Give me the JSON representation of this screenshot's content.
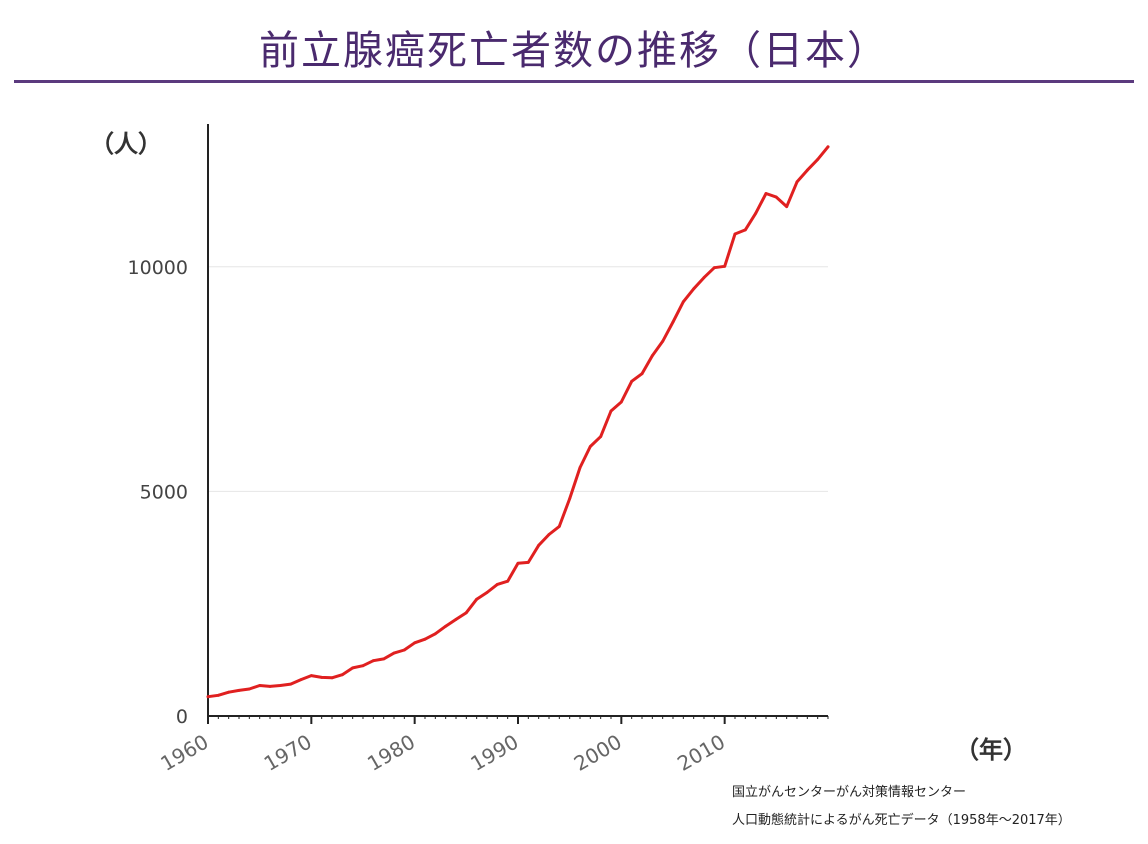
{
  "title": "前立腺癌死亡者数の推移（日本）",
  "source_lines": [
    "国立がんセンターがん対策情報センター",
    "人口動態統計によるがん死亡データ（1958年〜2017年）"
  ],
  "chart_data": {
    "type": "line",
    "title": "前立腺癌死亡者数の推移（日本）",
    "xlabel": "（年）",
    "ylabel": "（人）",
    "xlim": [
      1960,
      2020
    ],
    "ylim": [
      0,
      13000
    ],
    "x_ticks": [
      1960,
      1970,
      1980,
      1990,
      2000,
      2010
    ],
    "y_ticks": [
      0,
      5000,
      10000
    ],
    "grid": true,
    "series": [
      {
        "name": "前立腺癌死亡者数",
        "color": "#e02020",
        "x": [
          1960,
          1961,
          1962,
          1963,
          1964,
          1965,
          1966,
          1967,
          1968,
          1969,
          1970,
          1971,
          1972,
          1973,
          1974,
          1975,
          1976,
          1977,
          1978,
          1979,
          1980,
          1981,
          1982,
          1983,
          1984,
          1985,
          1986,
          1987,
          1988,
          1989,
          1990,
          1991,
          1992,
          1993,
          1994,
          1995,
          1996,
          1997,
          1998,
          1999,
          2000,
          2001,
          2002,
          2003,
          2004,
          2005,
          2006,
          2007,
          2008,
          2009,
          2010,
          2011,
          2012,
          2013,
          2014,
          2015,
          2016,
          2017,
          2018,
          2019,
          2020
        ],
        "values": [
          430,
          460,
          530,
          570,
          600,
          680,
          660,
          680,
          710,
          810,
          900,
          860,
          850,
          920,
          1070,
          1120,
          1230,
          1270,
          1400,
          1470,
          1630,
          1710,
          1830,
          2000,
          2150,
          2300,
          2600,
          2750,
          2930,
          3000,
          3400,
          3420,
          3800,
          4040,
          4220,
          4840,
          5530,
          6000,
          6220,
          6790,
          6990,
          7450,
          7620,
          8020,
          8340,
          8770,
          9220,
          9510,
          9760,
          9980,
          10010,
          10730,
          10820,
          11190,
          11630,
          11550,
          11340,
          11890,
          12150,
          12390,
          12670
        ]
      }
    ]
  }
}
